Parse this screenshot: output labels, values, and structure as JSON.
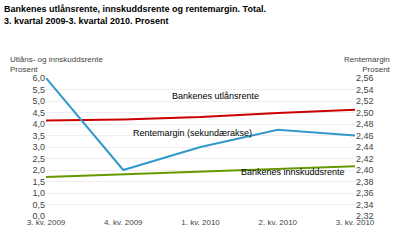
{
  "chart_data": {
    "type": "line",
    "title": "Bankenes utlånsrente, innskuddsrente og rentemargin. Total.",
    "subtitle": "3. kvartal 2009-3. kvartal 2010. Prosent",
    "ylabel": [
      "Utlåns- og innskuddsrente",
      "Prosent"
    ],
    "y2label": [
      "Rentemargin",
      "Prosent"
    ],
    "categories": [
      "3. kv. 2009",
      "4. kv. 2009",
      "1. kv. 2010",
      "2. kv. 2010",
      "3. kv. 2010"
    ],
    "series": [
      {
        "color": "#cc0000",
        "values": [
          4.15,
          4.2,
          4.3,
          4.48,
          4.62
        ]
      },
      {
        "color": "#669900",
        "values": [
          1.7,
          1.82,
          1.95,
          2.05,
          2.16
        ]
      },
      {
        "color": "#3399cc",
        "values": [
          2.56,
          2.4,
          2.44,
          2.47,
          2.46
        ],
        "axis": "y2"
      }
    ],
    "ylim": [
      0.0,
      6.0
    ],
    "yticks": [
      {
        "value": 0.0,
        "label": "0,0"
      },
      {
        "value": 0.5,
        "label": "0,5"
      },
      {
        "value": 1.0,
        "label": "1,0"
      },
      {
        "value": 1.5,
        "label": "1,5"
      },
      {
        "value": 2.0,
        "label": "2,0"
      },
      {
        "value": 2.5,
        "label": "2,5"
      },
      {
        "value": 3.0,
        "label": "3,0"
      },
      {
        "value": 3.5,
        "label": "3,5"
      },
      {
        "value": 4.0,
        "label": "4,0"
      },
      {
        "value": 4.5,
        "label": "4,5"
      },
      {
        "value": 5.0,
        "label": "5,0"
      },
      {
        "value": 5.5,
        "label": "5,5"
      },
      {
        "value": 6.0,
        "label": "6,0"
      }
    ],
    "y2lim": [
      2.32,
      2.56
    ],
    "y2ticks": [
      {
        "value": 2.32,
        "label": "2,32"
      },
      {
        "value": 2.34,
        "label": "2,34"
      },
      {
        "value": 2.36,
        "label": "2,36"
      },
      {
        "value": 2.38,
        "label": "2,38"
      },
      {
        "value": 2.4,
        "label": "2,40"
      },
      {
        "value": 2.42,
        "label": "2,42"
      },
      {
        "value": 2.44,
        "label": "2,44"
      },
      {
        "value": 2.46,
        "label": "2,46"
      },
      {
        "value": 2.48,
        "label": "2,48"
      },
      {
        "value": 2.5,
        "label": "2,50"
      },
      {
        "value": 2.52,
        "label": "2,52"
      },
      {
        "value": 2.54,
        "label": "2,54"
      },
      {
        "value": 2.56,
        "label": "2,56"
      }
    ],
    "grid": true,
    "annotations": [
      {
        "text": "Bankenes utlånsrente",
        "x": 1.6,
        "y": 4.9
      },
      {
        "text": "Bankenes innskuddsrente",
        "x": 2.5,
        "y": 1.62
      },
      {
        "text": "Rentemargin (sekundærakse)",
        "x": 1.1,
        "y": 3.3
      }
    ]
  }
}
